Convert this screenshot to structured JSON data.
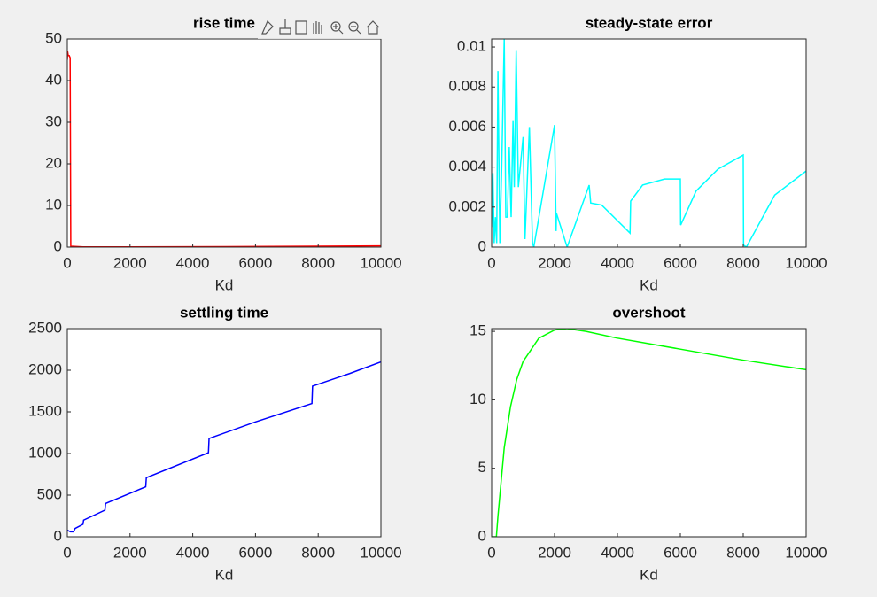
{
  "chart_data": [
    {
      "type": "line",
      "title": "rise time",
      "x_label": "Kd",
      "x": [
        0,
        10,
        30,
        60,
        90,
        110,
        500,
        2000,
        5000,
        8000,
        10000
      ],
      "series": [
        {
          "color": "#ff0000",
          "values": [
            45,
            47,
            46,
            46,
            45.5,
            0.2,
            0.05,
            0.05,
            0.1,
            0.2,
            0.3
          ]
        }
      ],
      "xlim": [
        0,
        10000
      ],
      "ylim": [
        0,
        50
      ],
      "xticks": [
        0,
        2000,
        4000,
        6000,
        8000,
        10000
      ],
      "yticks": [
        0,
        10,
        20,
        30,
        40,
        50
      ]
    },
    {
      "type": "line",
      "title": "steady-state error",
      "x_label": "Kd",
      "x": [
        0,
        40,
        80,
        120,
        160,
        200,
        260,
        320,
        400,
        450,
        500,
        560,
        620,
        680,
        720,
        780,
        850,
        1000,
        1060,
        1200,
        1300,
        1340,
        2000,
        2050,
        2060,
        2200,
        2400,
        3100,
        3150,
        3500,
        4400,
        4420,
        4800,
        5500,
        6000,
        6010,
        6500,
        7200,
        8000,
        8010,
        8100,
        9000,
        10000
      ],
      "series": [
        {
          "color": "#00ffff",
          "values": [
            0.001,
            0.0037,
            0.0002,
            0.0015,
            0.0002,
            0.0088,
            0.0002,
            0.004,
            0.0104,
            0.0015,
            0.0015,
            0.005,
            0.0015,
            0.0063,
            0.003,
            0.0098,
            0.003,
            0.0055,
            0.0004,
            0.006,
            0.0002,
            0,
            0.0061,
            0.0008,
            0.0017,
            0.001,
            0,
            0.0031,
            0.0022,
            0.0021,
            0.0007,
            0.0023,
            0.0031,
            0.0034,
            0.0034,
            0.0011,
            0.0028,
            0.0039,
            0.0046,
            0.0001,
            0,
            0.0026,
            0.0038
          ]
        }
      ],
      "xlim": [
        0,
        10000
      ],
      "ylim": [
        0,
        0.0104
      ],
      "xticks": [
        0,
        2000,
        4000,
        6000,
        8000,
        10000
      ],
      "yticks": [
        0,
        0.002,
        0.004,
        0.006,
        0.008,
        0.01
      ]
    },
    {
      "type": "line",
      "title": "settling time",
      "x_label": "Kd",
      "x": [
        0,
        100,
        200,
        250,
        500,
        520,
        1200,
        1220,
        2500,
        2520,
        4500,
        4520,
        6000,
        7800,
        7820,
        9000,
        10000
      ],
      "series": [
        {
          "color": "#0000ff",
          "values": [
            80,
            60,
            60,
            100,
            150,
            200,
            320,
            400,
            600,
            710,
            1010,
            1180,
            1380,
            1600,
            1810,
            1960,
            2100
          ]
        }
      ],
      "xlim": [
        0,
        10000
      ],
      "ylim": [
        0,
        2500
      ],
      "xticks": [
        0,
        2000,
        4000,
        6000,
        8000,
        10000
      ],
      "yticks": [
        0,
        500,
        1000,
        1500,
        2000,
        2500
      ]
    },
    {
      "type": "line",
      "title": "overshoot",
      "x_label": "Kd",
      "x": [
        0,
        100,
        150,
        200,
        300,
        400,
        600,
        800,
        1000,
        1500,
        2000,
        2400,
        3000,
        4000,
        6000,
        8000,
        10000
      ],
      "series": [
        {
          "color": "#00ff00",
          "values": [
            0,
            0,
            0,
            1.5,
            4,
            6.5,
            9.5,
            11.5,
            12.8,
            14.5,
            15.1,
            15.2,
            15,
            14.5,
            13.7,
            12.9,
            12.2
          ]
        }
      ],
      "xlim": [
        0,
        10000
      ],
      "ylim": [
        0,
        15.2
      ],
      "xticks": [
        0,
        2000,
        4000,
        6000,
        8000,
        10000
      ],
      "yticks": [
        0,
        5,
        10,
        15
      ]
    }
  ]
}
